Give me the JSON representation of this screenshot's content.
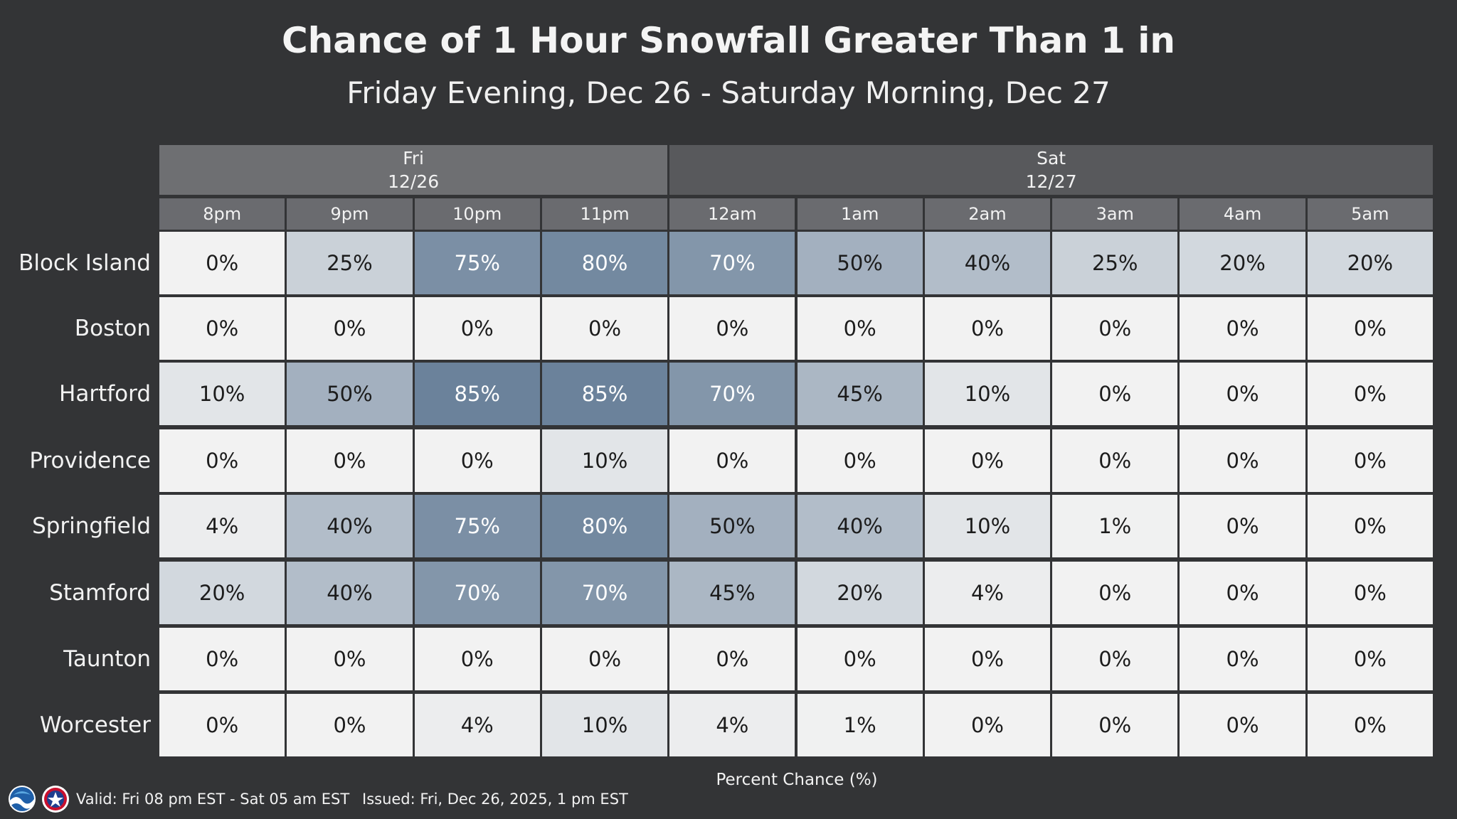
{
  "header": {
    "title": "Chance of 1 Hour Snowfall Greater Than 1 in",
    "subtitle": "Friday Evening, Dec 26 - Saturday Morning, Dec 27"
  },
  "chart_data": {
    "type": "heatmap",
    "days": [
      {
        "label": "Fri",
        "date": "12/26",
        "span": 4
      },
      {
        "label": "Sat",
        "date": "12/27",
        "span": 6
      }
    ],
    "columns": [
      "8pm",
      "9pm",
      "10pm",
      "11pm",
      "12am",
      "1am",
      "2am",
      "3am",
      "4am",
      "5am"
    ],
    "rows": [
      {
        "location": "Block Island",
        "values": [
          0,
          25,
          75,
          80,
          70,
          50,
          40,
          25,
          20,
          20
        ]
      },
      {
        "location": "Boston",
        "values": [
          0,
          0,
          0,
          0,
          0,
          0,
          0,
          0,
          0,
          0
        ]
      },
      {
        "location": "Hartford",
        "values": [
          10,
          50,
          85,
          85,
          70,
          45,
          10,
          0,
          0,
          0
        ]
      },
      {
        "location": "Providence",
        "values": [
          0,
          0,
          0,
          10,
          0,
          0,
          0,
          0,
          0,
          0
        ]
      },
      {
        "location": "Springfield",
        "values": [
          4,
          40,
          75,
          80,
          50,
          40,
          10,
          1,
          0,
          0
        ]
      },
      {
        "location": "Stamford",
        "values": [
          20,
          40,
          70,
          70,
          45,
          20,
          4,
          0,
          0,
          0
        ]
      },
      {
        "location": "Taunton",
        "values": [
          0,
          0,
          0,
          0,
          0,
          0,
          0,
          0,
          0,
          0
        ]
      },
      {
        "location": "Worcester",
        "values": [
          0,
          0,
          4,
          10,
          4,
          1,
          0,
          0,
          0,
          0
        ]
      }
    ],
    "unit_suffix": "%",
    "legend_title": "Percent Chance (%)",
    "colors": {
      "low": "#f2f2f2",
      "high": "#6b829b",
      "background": "#333436",
      "day_header_fri": "#6e6f72",
      "day_header_sat": "#58595c",
      "hour_header": "#6a6b6f"
    }
  },
  "footer": {
    "valid": "Valid: Fri 08 pm EST - Sat 05 am EST",
    "issued": "Issued: Fri, Dec 26, 2025, 1 pm EST",
    "logos": [
      "noaa-logo",
      "nws-logo"
    ]
  }
}
